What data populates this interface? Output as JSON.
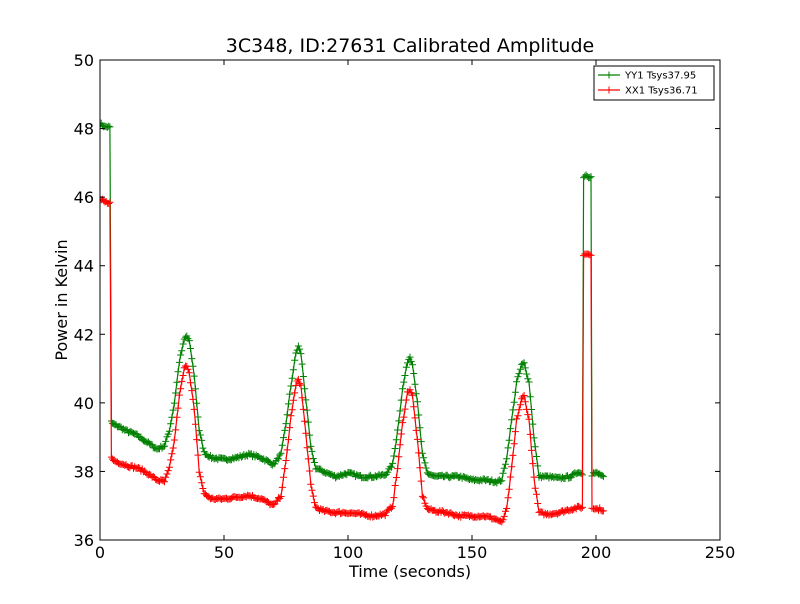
{
  "chart_data": {
    "type": "line",
    "title": "3C348, ID:27631 Calibrated Amplitude",
    "xlabel": "Time (seconds)",
    "ylabel": "Power in Kelvin",
    "xlim": [
      0,
      250
    ],
    "ylim": [
      36,
      50
    ],
    "xticks": [
      "0",
      "50",
      "100",
      "150",
      "200",
      "250"
    ],
    "yticks": [
      "36",
      "38",
      "40",
      "42",
      "44",
      "46",
      "48",
      "50"
    ],
    "grid": false,
    "legend_position": "top-right",
    "series": [
      {
        "name": "YY1 Tsys37.95",
        "color": "#008000",
        "marker": "+",
        "x": [
          0,
          1,
          2,
          3,
          4,
          4.6,
          5,
          6,
          8,
          10,
          12,
          15,
          18,
          20,
          23,
          26,
          28,
          30,
          32,
          34,
          35,
          36,
          38,
          40,
          42,
          45,
          50,
          55,
          60,
          65,
          70,
          73,
          75,
          77,
          79,
          80,
          81,
          83,
          85,
          87,
          90,
          95,
          100,
          105,
          110,
          115,
          118,
          120,
          122,
          124,
          125,
          126,
          128,
          130,
          132,
          135,
          140,
          145,
          150,
          155,
          160,
          162,
          164,
          166,
          168,
          170,
          171,
          173,
          175,
          177,
          180,
          185,
          190,
          193,
          194.5,
          195,
          196,
          197,
          198,
          198.4,
          199,
          200,
          202,
          203
        ],
        "y": [
          48.15,
          48.1,
          48.05,
          48.05,
          48.05,
          39.45,
          39.4,
          39.35,
          39.3,
          39.2,
          39.15,
          39.05,
          38.9,
          38.8,
          38.65,
          38.75,
          39.2,
          40.0,
          41.2,
          41.85,
          41.95,
          41.8,
          40.8,
          39.2,
          38.55,
          38.4,
          38.35,
          38.4,
          38.5,
          38.4,
          38.2,
          38.5,
          39.4,
          40.5,
          41.45,
          41.65,
          41.45,
          40.1,
          38.7,
          38.1,
          38.0,
          37.85,
          37.95,
          37.85,
          37.85,
          37.9,
          38.2,
          39.2,
          40.4,
          41.2,
          41.35,
          41.15,
          40.0,
          38.5,
          37.95,
          37.85,
          37.85,
          37.85,
          37.75,
          37.75,
          37.7,
          37.75,
          38.4,
          39.5,
          40.6,
          41.1,
          41.15,
          40.6,
          39.0,
          37.85,
          37.85,
          37.8,
          37.85,
          38.0,
          37.9,
          46.6,
          46.65,
          46.6,
          46.6,
          37.9,
          37.95,
          37.95,
          37.9,
          37.85
        ]
      },
      {
        "name": "XX1 Tsys36.71",
        "color": "#ff0000",
        "marker": "+",
        "x": [
          0,
          1,
          2,
          3,
          4,
          4.6,
          5,
          6,
          8,
          10,
          12,
          15,
          18,
          20,
          23,
          26,
          28,
          30,
          32,
          34,
          35,
          36,
          38,
          40,
          42,
          45,
          50,
          55,
          60,
          65,
          70,
          73,
          75,
          77,
          79,
          80,
          81,
          83,
          85,
          87,
          90,
          95,
          100,
          105,
          110,
          115,
          118,
          120,
          122,
          124,
          125,
          126,
          128,
          130,
          132,
          135,
          140,
          145,
          150,
          155,
          160,
          162,
          164,
          166,
          168,
          170,
          171,
          173,
          175,
          177,
          180,
          185,
          190,
          193,
          194.5,
          195,
          196,
          197,
          198,
          198.4,
          199,
          200,
          202,
          203
        ],
        "y": [
          45.9,
          45.9,
          45.85,
          45.85,
          45.85,
          38.4,
          38.35,
          38.3,
          38.25,
          38.2,
          38.15,
          38.1,
          38.0,
          37.9,
          37.75,
          37.7,
          38.1,
          38.9,
          40.2,
          41.0,
          41.1,
          40.9,
          39.8,
          38.0,
          37.35,
          37.2,
          37.2,
          37.25,
          37.3,
          37.2,
          37.0,
          37.3,
          38.3,
          39.6,
          40.5,
          40.7,
          40.5,
          39.1,
          37.6,
          36.95,
          36.85,
          36.8,
          36.8,
          36.75,
          36.7,
          36.75,
          37.0,
          38.1,
          39.4,
          40.3,
          40.4,
          40.2,
          38.9,
          37.3,
          36.9,
          36.85,
          36.8,
          36.7,
          36.7,
          36.7,
          36.6,
          36.5,
          36.9,
          38.1,
          39.5,
          40.1,
          40.2,
          39.5,
          37.8,
          36.8,
          36.75,
          36.8,
          36.9,
          36.95,
          36.95,
          44.3,
          44.35,
          44.35,
          44.3,
          36.95,
          36.95,
          36.9,
          36.9,
          36.85
        ]
      }
    ]
  }
}
